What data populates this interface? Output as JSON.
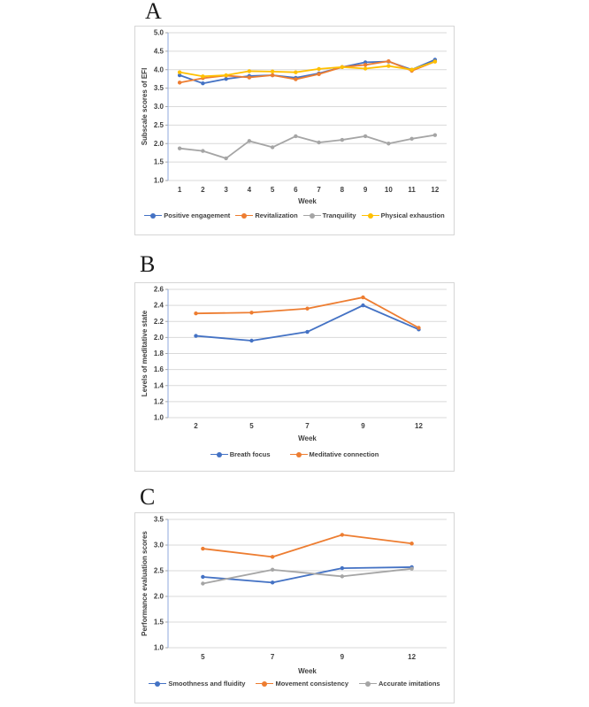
{
  "figure": {
    "panels": [
      {
        "label": "A"
      },
      {
        "label": "B"
      },
      {
        "label": "C"
      }
    ]
  },
  "colors": {
    "blue": "#4472C4",
    "orange": "#ED7D31",
    "gray": "#A5A5A5",
    "yellow": "#FFC000",
    "gridline": "#D9D9D9",
    "axis_line": "#8FAADC",
    "tick_mark": "#A6A6A6",
    "text": "#404040"
  },
  "chart_data": [
    {
      "type": "line",
      "title": "",
      "xlabel": "Week",
      "ylabel": "Subscale scores of EFI",
      "ylim": [
        1.0,
        5.0
      ],
      "ytick_step": 0.5,
      "ytick_decimals": 1,
      "grid": true,
      "legend_position": "bottom",
      "categories": [
        "1",
        "2",
        "3",
        "4",
        "5",
        "6",
        "7",
        "8",
        "9",
        "10",
        "11",
        "12"
      ],
      "series": [
        {
          "name": "Positive engagement",
          "color": "#4472C4",
          "values": [
            3.85,
            3.63,
            3.75,
            3.83,
            3.85,
            3.78,
            3.9,
            4.07,
            4.2,
            4.22,
            4.0,
            4.27
          ]
        },
        {
          "name": "Revitalization",
          "color": "#ED7D31",
          "values": [
            3.65,
            3.77,
            3.84,
            3.79,
            3.85,
            3.74,
            3.88,
            4.07,
            4.13,
            4.23,
            3.97,
            4.22
          ]
        },
        {
          "name": "Tranquility",
          "color": "#A5A5A5",
          "values": [
            1.87,
            1.8,
            1.6,
            2.07,
            1.9,
            2.2,
            2.03,
            2.1,
            2.2,
            2.0,
            2.13,
            2.23
          ]
        },
        {
          "name": "Physical exhaustion",
          "color": "#FFC000",
          "values": [
            3.93,
            3.82,
            3.85,
            3.96,
            3.95,
            3.93,
            4.02,
            4.07,
            4.03,
            4.1,
            4.0,
            4.22
          ]
        }
      ]
    },
    {
      "type": "line",
      "title": "",
      "xlabel": "Week",
      "ylabel": "Levels of meditative state",
      "ylim": [
        1.0,
        2.6
      ],
      "ytick_step": 0.2,
      "ytick_decimals": 1,
      "grid": true,
      "legend_position": "bottom",
      "categories": [
        "2",
        "5",
        "7",
        "9",
        "12"
      ],
      "series": [
        {
          "name": "Breath focus",
          "color": "#4472C4",
          "values": [
            2.02,
            1.96,
            2.07,
            2.4,
            2.1
          ]
        },
        {
          "name": "Meditative connection",
          "color": "#ED7D31",
          "values": [
            2.3,
            2.31,
            2.36,
            2.5,
            2.12
          ]
        }
      ]
    },
    {
      "type": "line",
      "title": "",
      "xlabel": "Week",
      "ylabel": "Performance evaluation scores",
      "ylim": [
        1.0,
        3.5
      ],
      "ytick_step": 0.5,
      "ytick_decimals": 1,
      "grid": true,
      "legend_position": "bottom",
      "categories": [
        "5",
        "7",
        "9",
        "12"
      ],
      "series": [
        {
          "name": "Smoothness and fluidity",
          "color": "#4472C4",
          "values": [
            2.38,
            2.27,
            2.55,
            2.57
          ]
        },
        {
          "name": "Movement consistency",
          "color": "#ED7D31",
          "values": [
            2.93,
            2.77,
            3.2,
            3.03
          ]
        },
        {
          "name": "Accurate imitations",
          "color": "#A5A5A5",
          "values": [
            2.25,
            2.52,
            2.39,
            2.54
          ]
        }
      ]
    }
  ]
}
